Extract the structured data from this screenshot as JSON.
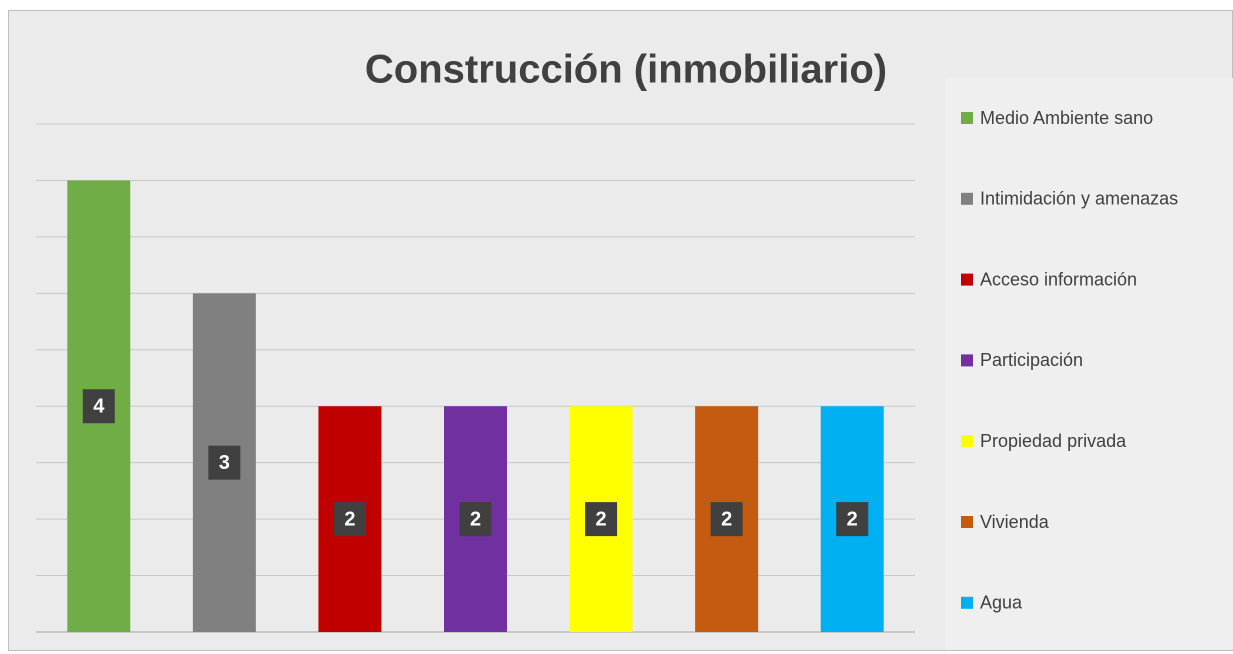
{
  "chart_data": {
    "type": "bar",
    "title": "Construcción (inmobiliario)",
    "categories": [
      "Medio Ambiente sano",
      "Intimidación y amenazas",
      "Acceso información",
      "Participación",
      "Propiedad privada",
      "Vivienda",
      "Agua"
    ],
    "values": [
      4,
      3,
      2,
      2,
      2,
      2,
      2
    ],
    "colors": [
      "#70ad47",
      "#808080",
      "#c00000",
      "#7030a0",
      "#ffff00",
      "#c55a11",
      "#00b0f0"
    ],
    "ylim": [
      0,
      4.5
    ],
    "yticks": [
      0,
      0.5,
      1,
      1.5,
      2,
      2.5,
      3,
      3.5,
      4,
      4.5
    ],
    "grid": true,
    "legend": "right"
  }
}
